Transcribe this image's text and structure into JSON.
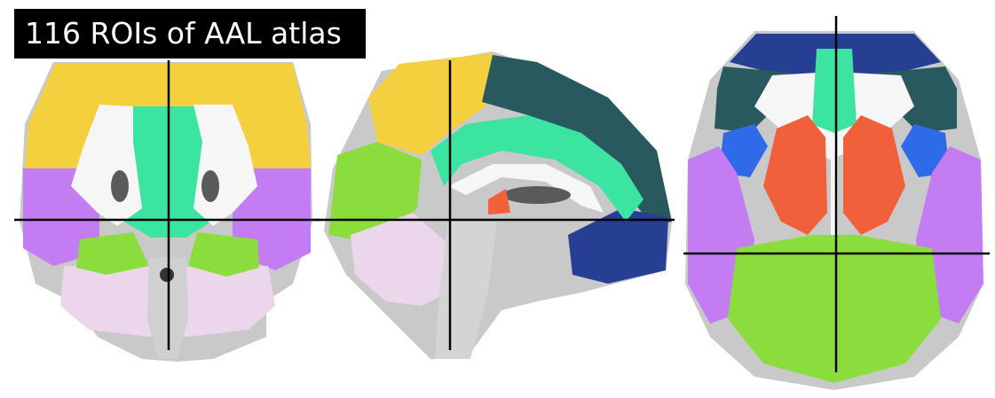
{
  "figure": {
    "title": "116 ROIs of AAL atlas",
    "views": [
      "coronal",
      "sagittal",
      "axial"
    ]
  },
  "colors": {
    "background": "#ffffff",
    "title_bg": "#000000",
    "title_text": "#ffffff",
    "crosshair": "#000000",
    "brain_gray": "#c9c9c9",
    "brain_dark": "#5a5a5a",
    "white_matter": "#f6f6f6",
    "frontal_yellow": "#f4d03f",
    "temporal_violet": "#c47cf2",
    "cerebellum_pink": "#ecd6ec",
    "cingulate_green": "#3be4a0",
    "occipital_green": "#8bdd3e",
    "orbital_teal": "#27595f",
    "frontal_navy": "#263f93",
    "insula_blue": "#2f6be8",
    "basal_ganglia_orange": "#f0603a"
  }
}
